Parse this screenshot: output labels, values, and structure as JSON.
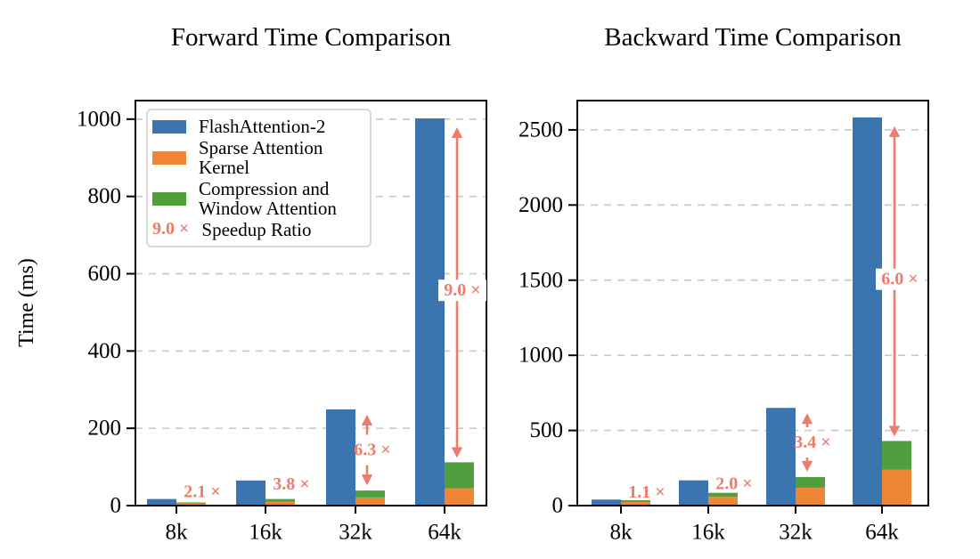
{
  "colors": {
    "blue": "#3b75af",
    "orange": "#ef8636",
    "green": "#519e3e",
    "salmon": "#ec7c6c",
    "grid": "#c9c9c9",
    "axis": "#000000",
    "legend_border": "#d9d9d9"
  },
  "legend": {
    "items": [
      {
        "label": "FlashAttention-2",
        "series_color": "#3b75af"
      },
      {
        "label": "Sparse Attention Kernel",
        "series_color": "#ef8636"
      },
      {
        "label": "Compression and Window Attention",
        "lines": [
          "Compression and",
          "Window Attention"
        ],
        "series_color": "#519e3e"
      },
      {
        "prefix": "9.0 ×",
        "label": "Speedup Ratio",
        "color": "#ec7c6c"
      }
    ]
  },
  "chart_data": [
    {
      "type": "bar",
      "variant": "grouped-and-stacked",
      "title": "Forward Time Comparison",
      "ylabel": "Time (ms)",
      "xlabel": "",
      "categories": [
        "8k",
        "16k",
        "32k",
        "64k"
      ],
      "series": [
        {
          "name": "FlashAttention-2",
          "color": "#3b75af",
          "stacked": false,
          "values": [
            17,
            65,
            249,
            1002
          ]
        },
        {
          "name": "Sparse Attention Kernel",
          "color": "#ef8636",
          "stacked": true,
          "values": [
            5,
            10,
            21,
            45
          ]
        },
        {
          "name": "Compression and Window Attention",
          "color": "#519e3e",
          "stacked": true,
          "values": [
            3,
            7,
            18,
            67
          ]
        }
      ],
      "speedup_ratios": {
        "values": [
          2.1,
          3.8,
          6.3,
          9.0
        ],
        "labels": [
          "2.1 ×",
          "3.8 ×",
          "6.3 ×",
          "9.0 ×"
        ],
        "color": "#ec7c6c"
      },
      "ylim": [
        0,
        1048
      ],
      "yticks": [
        0,
        200,
        400,
        600,
        800,
        1000
      ],
      "grid": true,
      "legend_position": "upper left"
    },
    {
      "type": "bar",
      "variant": "grouped-and-stacked",
      "title": "Backward Time Comparison",
      "ylabel": "",
      "xlabel": "",
      "categories": [
        "8k",
        "16k",
        "32k",
        "64k"
      ],
      "series": [
        {
          "name": "FlashAttention-2",
          "color": "#3b75af",
          "stacked": false,
          "values": [
            40,
            168,
            650,
            2583
          ]
        },
        {
          "name": "Sparse Attention Kernel",
          "color": "#ef8636",
          "stacked": true,
          "values": [
            24,
            58,
            119,
            240
          ]
        },
        {
          "name": "Compression and Window Attention",
          "color": "#519e3e",
          "stacked": true,
          "values": [
            12,
            27,
            71,
            190
          ]
        }
      ],
      "speedup_ratios": {
        "values": [
          1.1,
          2.0,
          3.4,
          6.0
        ],
        "labels": [
          "1.1 ×",
          "2.0 ×",
          "3.4 ×",
          "6.0 ×"
        ],
        "color": "#ec7c6c"
      },
      "ylim": [
        0,
        2695
      ],
      "yticks": [
        0,
        500,
        1000,
        1500,
        2000,
        2500
      ],
      "grid": true,
      "legend_position": "none"
    }
  ]
}
